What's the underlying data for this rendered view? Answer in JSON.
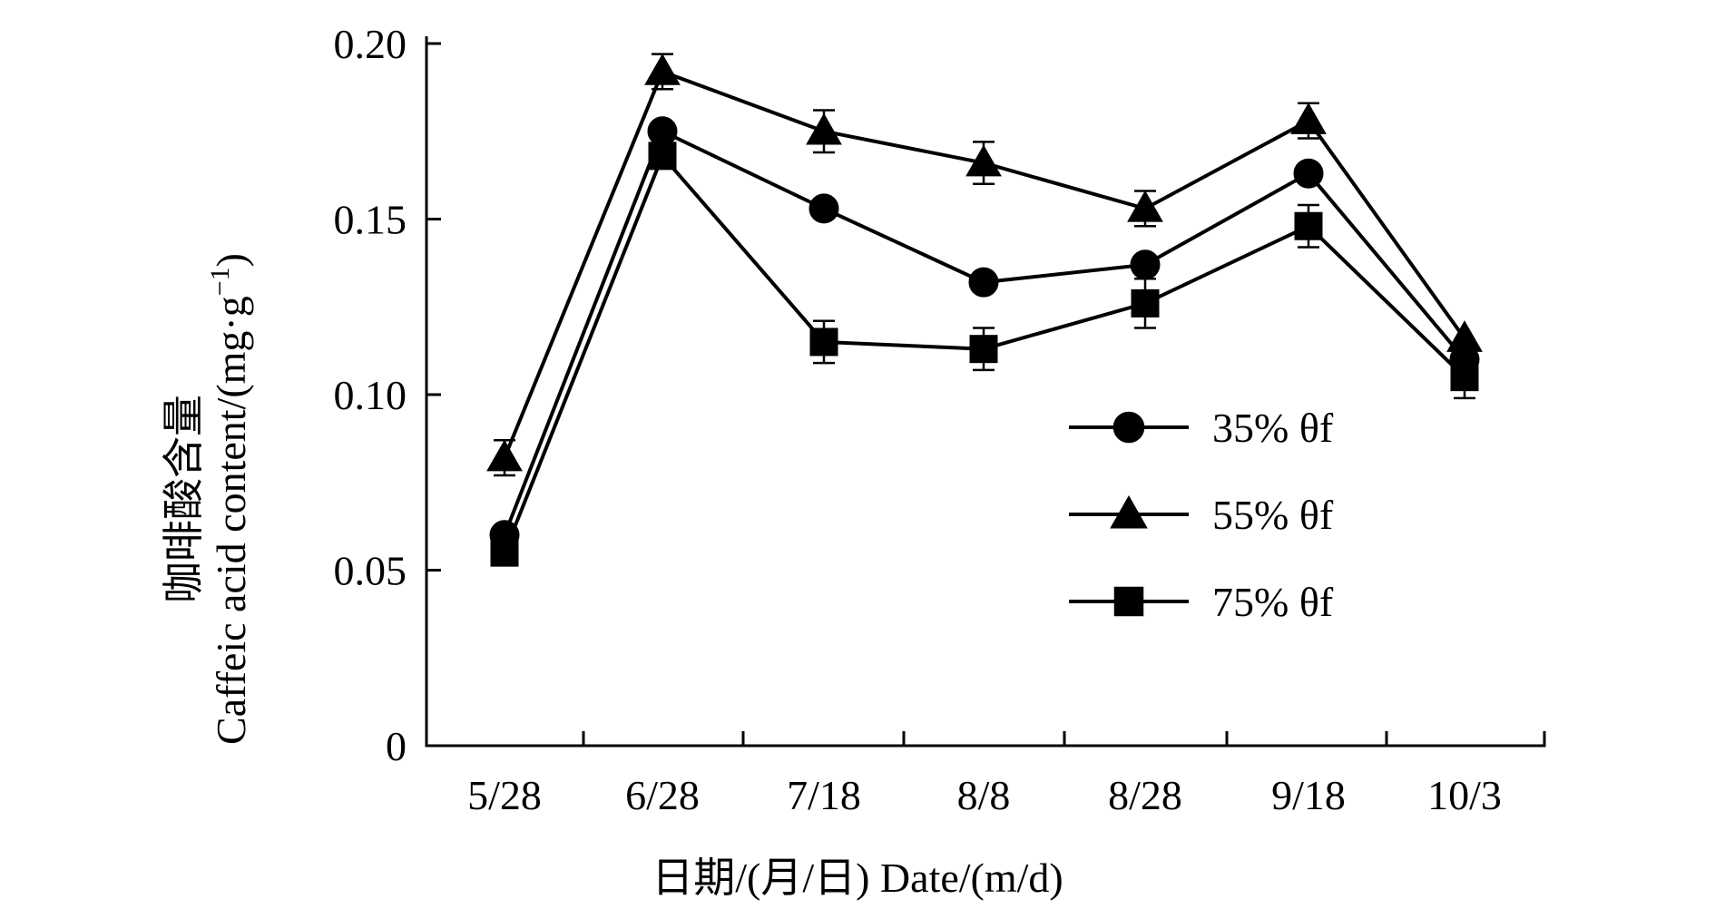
{
  "chart_data": {
    "type": "line",
    "categories": [
      "5/28",
      "6/28",
      "7/18",
      "8/8",
      "8/28",
      "9/18",
      "10/3"
    ],
    "ylabel_cn": "咖啡酸含量",
    "ylabel_en": "Caffeic acid content/(mg·g",
    "ylabel_sup": "−1",
    "ylabel_end": ")",
    "xlabel": "日期/(月/日) Date/(m/d)",
    "ylim": [
      0,
      0.2
    ],
    "yticks": [
      0,
      0.05,
      0.1,
      0.15,
      0.2
    ],
    "ytick_labels": [
      "0",
      "0.05",
      "0.10",
      "0.15",
      "0.20"
    ],
    "grid": false,
    "legend_position": "right",
    "series": [
      {
        "name": "35% θf",
        "marker": "circle",
        "values": [
          0.06,
          0.175,
          0.153,
          0.132,
          0.137,
          0.163,
          0.11
        ],
        "errors": [
          0.0,
          0.0,
          0.0,
          0.0,
          0.0,
          0.0,
          0.0
        ]
      },
      {
        "name": "55% θf",
        "marker": "triangle",
        "values": [
          0.082,
          0.192,
          0.175,
          0.166,
          0.153,
          0.178,
          0.116
        ],
        "errors": [
          0.005,
          0.005,
          0.006,
          0.006,
          0.005,
          0.005,
          0.0
        ]
      },
      {
        "name": "75% θf",
        "marker": "square",
        "values": [
          0.055,
          0.168,
          0.115,
          0.113,
          0.126,
          0.148,
          0.105
        ],
        "errors": [
          0.0,
          0.0,
          0.006,
          0.006,
          0.007,
          0.006,
          0.006
        ]
      }
    ]
  }
}
